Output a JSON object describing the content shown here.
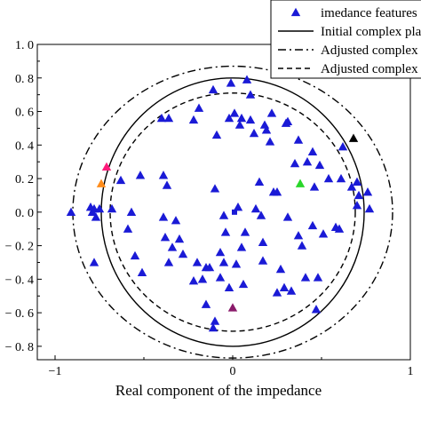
{
  "chart_data": {
    "type": "scatter",
    "xlabel": "Real component of the impedance",
    "ylabel": "",
    "xlim": [
      -1.1,
      1.0
    ],
    "ylim": [
      -0.88,
      1.0
    ],
    "x_ticks": [
      -1,
      0,
      1
    ],
    "x_tick_labels": [
      "−1",
      "0",
      "1"
    ],
    "y_ticks": [
      1.0,
      0.8,
      0.6,
      0.4,
      0.2,
      0.0,
      -0.2,
      -0.4,
      -0.6,
      -0.8
    ],
    "y_tick_labels": [
      "1. 0",
      "0. 8",
      "0. 6",
      "0. 4",
      "0. 2",
      "0. 0",
      "− 0. 2",
      "− 0. 4",
      "− 0. 6",
      "− 0. 8"
    ],
    "legend": {
      "placement": "top-right",
      "entries": [
        {
          "label": "imedance features",
          "kind": "marker"
        },
        {
          "label": "Initial complex plan",
          "kind": "solid"
        },
        {
          "label": "Adjusted complex p",
          "kind": "dashdot"
        },
        {
          "label": "Adjusted complex p",
          "kind": "dashed"
        }
      ]
    },
    "curves": [
      {
        "kind": "solid",
        "rx": 0.74,
        "ry": 0.8
      },
      {
        "kind": "dashdot",
        "rx": 0.9,
        "ry": 0.87
      },
      {
        "kind": "dashed",
        "rx": 0.69,
        "ry": 0.71
      }
    ],
    "marker_color": "#1a1ad6",
    "features": [
      [
        -0.91,
        0.0
      ],
      [
        -0.8,
        0.03
      ],
      [
        -0.79,
        0.0
      ],
      [
        -0.78,
        0.02
      ],
      [
        -0.77,
        -0.03
      ],
      [
        -0.75,
        0.02
      ],
      [
        -0.78,
        -0.3
      ],
      [
        -0.68,
        0.02
      ],
      [
        -0.63,
        0.19
      ],
      [
        -0.59,
        -0.1
      ],
      [
        -0.57,
        0.0
      ],
      [
        -0.55,
        -0.26
      ],
      [
        -0.52,
        0.22
      ],
      [
        -0.51,
        -0.36
      ],
      [
        -0.4,
        0.56
      ],
      [
        -0.36,
        0.56
      ],
      [
        -0.39,
        0.22
      ],
      [
        -0.37,
        0.16
      ],
      [
        -0.39,
        -0.03
      ],
      [
        -0.38,
        -0.15
      ],
      [
        -0.36,
        -0.3
      ],
      [
        -0.34,
        -0.21
      ],
      [
        -0.32,
        -0.05
      ],
      [
        -0.3,
        -0.16
      ],
      [
        -0.28,
        -0.25
      ],
      [
        -0.22,
        0.55
      ],
      [
        -0.22,
        -0.41
      ],
      [
        -0.2,
        -0.3
      ],
      [
        -0.19,
        0.62
      ],
      [
        -0.17,
        -0.4
      ],
      [
        -0.15,
        -0.33
      ],
      [
        -0.13,
        -0.33
      ],
      [
        -0.11,
        0.73
      ],
      [
        -0.1,
        0.14
      ],
      [
        -0.09,
        0.46
      ],
      [
        -0.07,
        -0.24
      ],
      [
        -0.07,
        -0.39
      ],
      [
        -0.05,
        -0.3
      ],
      [
        -0.05,
        -0.02
      ],
      [
        -0.04,
        -0.12
      ],
      [
        -0.02,
        0.56
      ],
      [
        -0.1,
        -0.65
      ],
      [
        -0.11,
        -0.69
      ],
      [
        -0.01,
        0.77
      ],
      [
        0.01,
        0.59
      ],
      [
        0.02,
        -0.31
      ],
      [
        0.03,
        0.03
      ],
      [
        0.04,
        0.52
      ],
      [
        0.05,
        -0.21
      ],
      [
        0.06,
        -0.43
      ],
      [
        0.07,
        -0.12
      ],
      [
        0.08,
        0.79
      ],
      [
        0.1,
        0.55
      ],
      [
        0.12,
        0.47
      ],
      [
        0.13,
        0.02
      ],
      [
        0.15,
        0.18
      ],
      [
        0.16,
        -0.02
      ],
      [
        0.17,
        -0.18
      ],
      [
        0.19,
        0.49
      ],
      [
        0.21,
        0.42
      ],
      [
        0.22,
        0.59
      ],
      [
        0.23,
        0.12
      ],
      [
        0.25,
        0.12
      ],
      [
        0.27,
        -0.34
      ],
      [
        0.29,
        -0.45
      ],
      [
        0.31,
        -0.03
      ],
      [
        0.17,
        -0.29
      ],
      [
        0.25,
        -0.48
      ],
      [
        0.33,
        -0.47
      ],
      [
        0.37,
        -0.14
      ],
      [
        0.39,
        -0.2
      ],
      [
        0.41,
        -0.39
      ],
      [
        0.42,
        0.3
      ],
      [
        0.45,
        0.36
      ],
      [
        0.45,
        -0.08
      ],
      [
        0.46,
        0.15
      ],
      [
        0.47,
        -0.58
      ],
      [
        0.48,
        -0.39
      ],
      [
        0.49,
        0.28
      ],
      [
        0.51,
        -0.13
      ],
      [
        0.54,
        0.2
      ],
      [
        0.58,
        -0.09
      ],
      [
        0.6,
        -0.1
      ],
      [
        0.61,
        0.2
      ],
      [
        0.62,
        0.39
      ],
      [
        0.67,
        0.15
      ],
      [
        0.7,
        0.04
      ],
      [
        0.7,
        0.18
      ],
      [
        0.71,
        0.1
      ],
      [
        0.76,
        0.12
      ],
      [
        0.77,
        0.02
      ],
      [
        0.3,
        0.53
      ],
      [
        0.31,
        0.54
      ],
      [
        0.35,
        0.29
      ],
      [
        0.37,
        0.43
      ],
      [
        0.1,
        0.7
      ],
      [
        0.05,
        0.56
      ],
      [
        -0.02,
        -0.45
      ],
      [
        -0.15,
        -0.55
      ],
      [
        0.18,
        0.52
      ]
    ],
    "highlights": [
      {
        "x": -0.74,
        "y": 0.17,
        "color": "#ff8c1a"
      },
      {
        "x": -0.71,
        "y": 0.27,
        "color": "#ff1a7a"
      },
      {
        "x": 0.38,
        "y": 0.17,
        "color": "#2ad62a"
      },
      {
        "x": 0.68,
        "y": 0.44,
        "color": "#000000"
      },
      {
        "x": 0.0,
        "y": -0.57,
        "color": "#8a1a6a"
      }
    ],
    "grid": false
  }
}
